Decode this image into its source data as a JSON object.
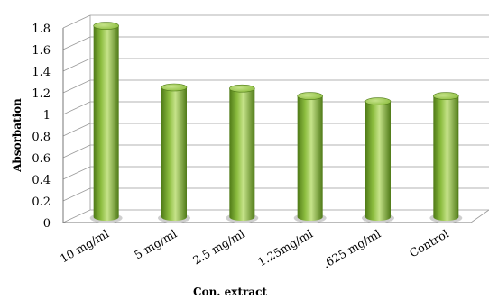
{
  "chart_data": {
    "type": "bar",
    "categories": [
      "10 mg/ml",
      "5 mg/ml",
      "2.5 mg/ml",
      "1.25mg/ml",
      ".625 mg/ml",
      "Control"
    ],
    "values": [
      1.77,
      1.2,
      1.19,
      1.12,
      1.07,
      1.12
    ],
    "xlabel": "Con. extract",
    "ylabel": "Absorbation",
    "ylim": [
      0,
      1.8
    ],
    "yticks": [
      "0",
      "0.2",
      "0.4",
      "0.6",
      "0.8",
      "1",
      "1.2",
      "1.4",
      "1.6",
      "1.8"
    ],
    "grid": true,
    "bar_color": "#8cbd3f",
    "bar_color_dark": "#4f7a17",
    "bar_color_light": "#c6e38a"
  }
}
